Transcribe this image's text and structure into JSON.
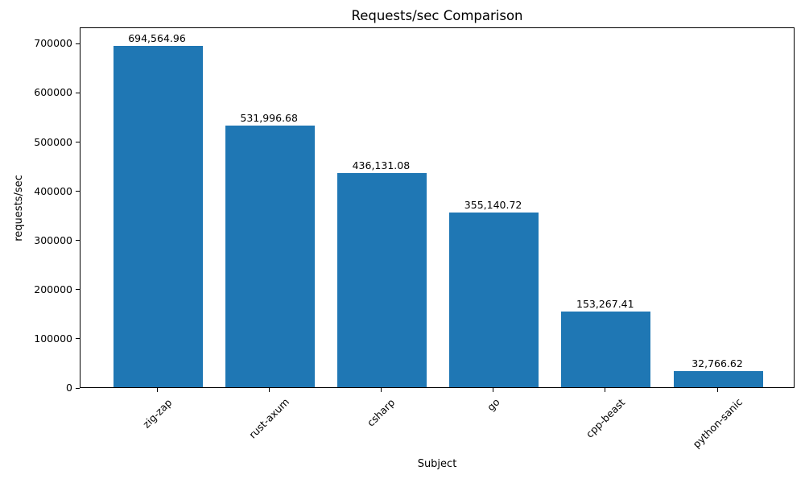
{
  "chart_data": {
    "type": "bar",
    "title": "Requests/sec Comparison",
    "xlabel": "Subject",
    "ylabel": "requests/sec",
    "categories": [
      "zig-zap",
      "rust-axum",
      "csharp",
      "go",
      "cpp-beast",
      "python-sanic"
    ],
    "values": [
      694564.96,
      531996.68,
      436131.08,
      355140.72,
      153267.41,
      32766.62
    ],
    "value_labels": [
      "694,564.96",
      "531,996.68",
      "436,131.08",
      "355,140.72",
      "153,267.41",
      "32,766.62"
    ],
    "yticks": [
      0,
      100000,
      200000,
      300000,
      400000,
      500000,
      600000,
      700000
    ],
    "ytick_labels": [
      "0",
      "100000",
      "200000",
      "300000",
      "400000",
      "500000",
      "600000",
      "700000"
    ],
    "ylim": [
      0,
      733300
    ],
    "bar_color": "#1f77b4",
    "background_color": "#ffffff",
    "axis_color": "#000000",
    "grid": false,
    "legend": null,
    "x_tick_rotation_deg": 45
  }
}
